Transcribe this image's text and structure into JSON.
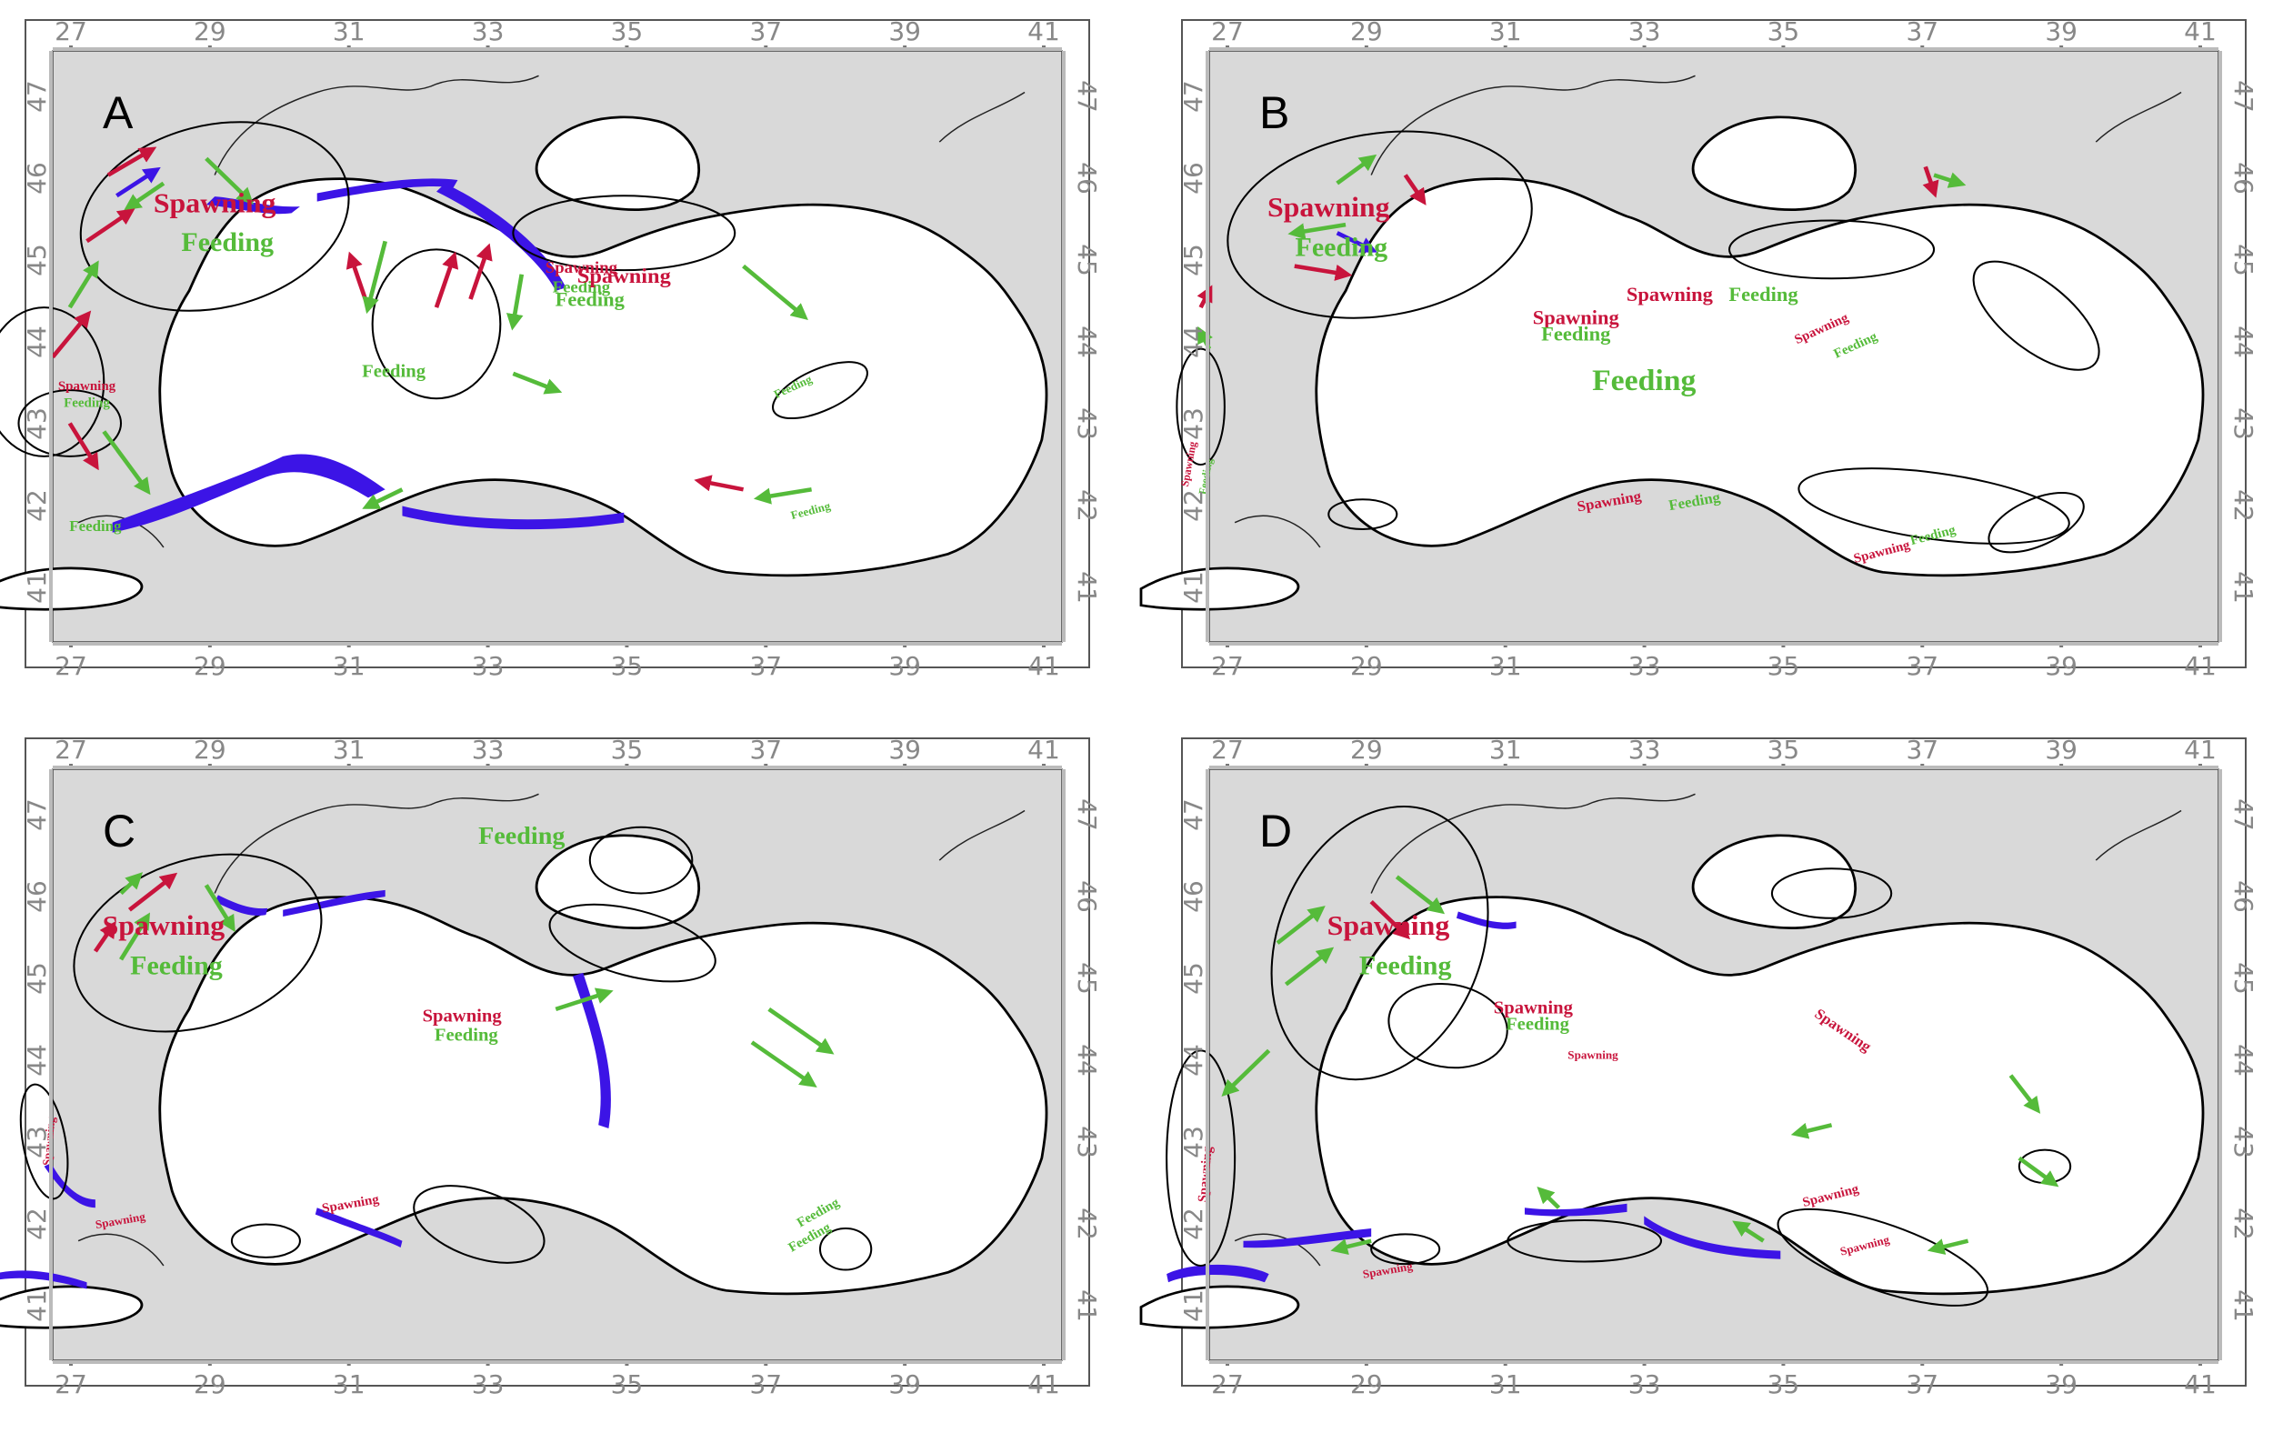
{
  "axes": {
    "lon_ticks": [
      "27",
      "29",
      "31",
      "33",
      "35",
      "37",
      "39",
      "41"
    ],
    "lat_ticks": [
      "41",
      "42",
      "43",
      "44",
      "45",
      "46",
      "47"
    ]
  },
  "colors": {
    "land": "#d9d9d9",
    "sea": "#ffffff",
    "shelf": "#3c14e6",
    "spawning": "#c8143c",
    "feeding": "#55bb3a"
  },
  "panels": [
    {
      "letter": "A",
      "labels": [
        {
          "text": "Spawning",
          "color": "red"
        },
        {
          "text": "Feeding",
          "color": "green"
        },
        {
          "text": "Spawning",
          "color": "red"
        },
        {
          "text": "Feeding",
          "color": "green"
        },
        {
          "text": "Spawning",
          "color": "red"
        },
        {
          "text": "Feeding",
          "color": "green"
        },
        {
          "text": "Feeding",
          "color": "green"
        },
        {
          "text": "Spawning",
          "color": "red"
        },
        {
          "text": "Feeding",
          "color": "green"
        },
        {
          "text": "Feeding",
          "color": "green"
        },
        {
          "text": "Feeding",
          "color": "green"
        },
        {
          "text": "Feeding",
          "color": "green"
        }
      ]
    },
    {
      "letter": "B",
      "labels": [
        {
          "text": "Spawning",
          "color": "red"
        },
        {
          "text": "Feeding",
          "color": "green"
        },
        {
          "text": "Spawning",
          "color": "red"
        },
        {
          "text": "Feeding",
          "color": "green"
        },
        {
          "text": "Feeding",
          "color": "green"
        },
        {
          "text": "Spawning",
          "color": "red"
        },
        {
          "text": "Feeding",
          "color": "green"
        },
        {
          "text": "Spawning",
          "color": "red"
        },
        {
          "text": "Feeding",
          "color": "green"
        },
        {
          "text": "Spawning",
          "color": "red"
        },
        {
          "text": "Feeding",
          "color": "green"
        },
        {
          "text": "Spawning",
          "color": "red"
        },
        {
          "text": "Feeding",
          "color": "green"
        },
        {
          "text": "Spawning",
          "color": "red"
        },
        {
          "text": "Feeding",
          "color": "green"
        }
      ]
    },
    {
      "letter": "C",
      "labels": [
        {
          "text": "Spawning",
          "color": "red"
        },
        {
          "text": "Feeding",
          "color": "green"
        },
        {
          "text": "Feeding",
          "color": "green"
        },
        {
          "text": "Spawning",
          "color": "red"
        },
        {
          "text": "Feeding",
          "color": "green"
        },
        {
          "text": "Spawning",
          "color": "red"
        },
        {
          "text": "Feeding",
          "color": "green"
        },
        {
          "text": "Spawning",
          "color": "red"
        },
        {
          "text": "Spawning",
          "color": "red"
        },
        {
          "text": "Feeding",
          "color": "green"
        }
      ]
    },
    {
      "letter": "D",
      "labels": [
        {
          "text": "Spawning",
          "color": "red"
        },
        {
          "text": "Feeding",
          "color": "green"
        },
        {
          "text": "Spawning",
          "color": "red"
        },
        {
          "text": "Feeding",
          "color": "green"
        },
        {
          "text": "Spawning",
          "color": "red"
        },
        {
          "text": "Spawning",
          "color": "red"
        },
        {
          "text": "Spawning",
          "color": "red"
        },
        {
          "text": "Spawning",
          "color": "red"
        },
        {
          "text": "Spawning",
          "color": "red"
        },
        {
          "text": "Spawning",
          "color": "red"
        }
      ]
    }
  ]
}
